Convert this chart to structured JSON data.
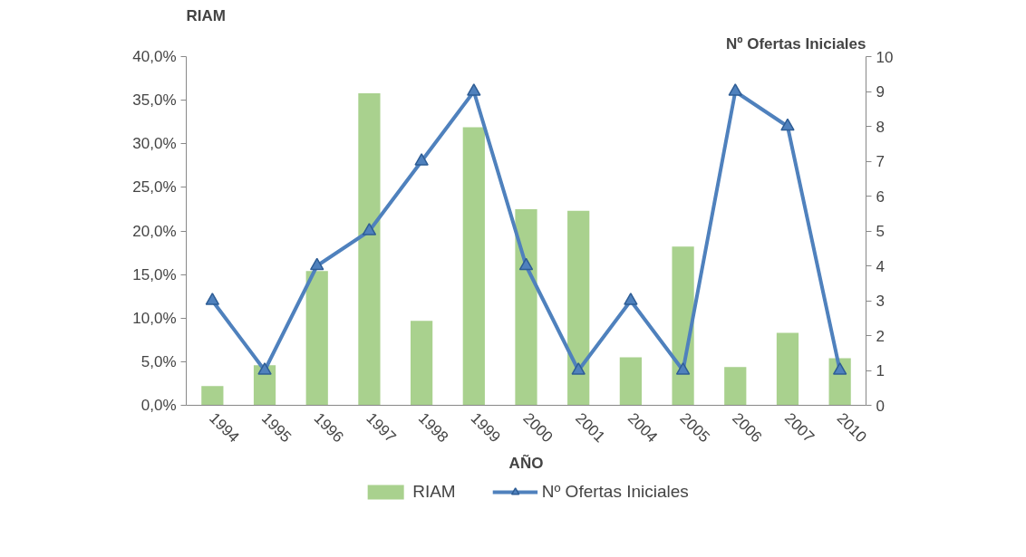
{
  "chart_data": {
    "type": "bar",
    "xlabel": "AÑO",
    "ylabel": "RIAM",
    "y2label": "Nº Ofertas Iniciales",
    "categories": [
      "1994",
      "1995",
      "1996",
      "1997",
      "1998",
      "1999",
      "2000",
      "2001",
      "2004",
      "2005",
      "2006",
      "2007",
      "2010"
    ],
    "ylim": [
      0,
      40
    ],
    "yticks": [
      {
        "value": 0,
        "label": "0,0%"
      },
      {
        "value": 5,
        "label": "5,0%"
      },
      {
        "value": 10,
        "label": "10,0%"
      },
      {
        "value": 15,
        "label": "15,0%"
      },
      {
        "value": 20,
        "label": "20,0%"
      },
      {
        "value": 25,
        "label": "25,0%"
      },
      {
        "value": 30,
        "label": "30,0%"
      },
      {
        "value": 35,
        "label": "35,0%"
      },
      {
        "value": 40,
        "label": "40,0%"
      }
    ],
    "y2lim": [
      0,
      10
    ],
    "y2ticks": [
      0,
      1,
      2,
      3,
      4,
      5,
      6,
      7,
      8,
      9,
      10
    ],
    "legend": "bottom",
    "marker": "triangle",
    "series": [
      {
        "name": "RIAM",
        "type": "bar",
        "color": "#a9d18e",
        "values": [
          2.2,
          4.6,
          15.4,
          35.8,
          9.7,
          31.9,
          22.5,
          22.3,
          5.5,
          18.2,
          4.4,
          8.3,
          5.4
        ]
      },
      {
        "name": "Nº Ofertas Iniciales",
        "type": "line",
        "axis": "y2",
        "color": "#4f81bd",
        "values": [
          3,
          1,
          4,
          5,
          7,
          9,
          4,
          1,
          3,
          1,
          9,
          8,
          1
        ]
      }
    ]
  }
}
